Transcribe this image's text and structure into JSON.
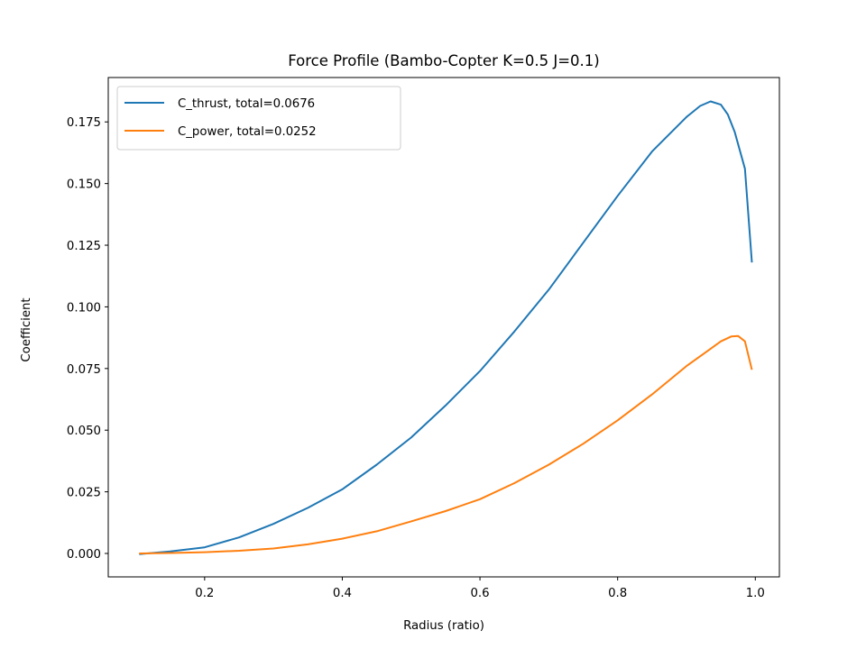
{
  "chart_data": {
    "type": "line",
    "title": "Force Profile (Bambo-Copter K=0.5 J=0.1)",
    "xlabel": "Radius (ratio)",
    "ylabel": "Coefficient",
    "xlim": [
      0.06,
      1.035
    ],
    "ylim": [
      -0.0095,
      0.193
    ],
    "xticks": [
      "0.2",
      "0.4",
      "0.6",
      "0.8",
      "1.0"
    ],
    "xtick_values": [
      0.2,
      0.4,
      0.6,
      0.8,
      1.0
    ],
    "yticks": [
      "0.000",
      "0.025",
      "0.050",
      "0.075",
      "0.100",
      "0.125",
      "0.150",
      "0.175"
    ],
    "ytick_values": [
      0,
      0.025,
      0.05,
      0.075,
      0.1,
      0.125,
      0.15,
      0.175
    ],
    "grid": false,
    "legend_position": "upper left",
    "series": [
      {
        "name": "C_thrust, total=0.0676",
        "color": "#1f77b4",
        "x": [
          0.105,
          0.15,
          0.2,
          0.25,
          0.3,
          0.35,
          0.4,
          0.45,
          0.5,
          0.55,
          0.6,
          0.65,
          0.7,
          0.75,
          0.8,
          0.85,
          0.9,
          0.92,
          0.935,
          0.95,
          0.96,
          0.97,
          0.985,
          0.995
        ],
        "values": [
          -0.0003,
          0.0008,
          0.0025,
          0.0065,
          0.012,
          0.0185,
          0.026,
          0.036,
          0.047,
          0.06,
          0.074,
          0.09,
          0.107,
          0.126,
          0.145,
          0.163,
          0.177,
          0.1815,
          0.1833,
          0.182,
          0.178,
          0.171,
          0.156,
          0.118
        ]
      },
      {
        "name": "C_power, total=0.0252",
        "color": "#ff7f0e",
        "x": [
          0.105,
          0.15,
          0.2,
          0.25,
          0.3,
          0.35,
          0.4,
          0.45,
          0.5,
          0.55,
          0.6,
          0.65,
          0.7,
          0.75,
          0.8,
          0.85,
          0.9,
          0.93,
          0.95,
          0.965,
          0.975,
          0.985,
          0.995
        ],
        "values": [
          0.0,
          0.0002,
          0.0005,
          0.0011,
          0.002,
          0.0037,
          0.006,
          0.009,
          0.013,
          0.0172,
          0.022,
          0.0285,
          0.036,
          0.0445,
          0.054,
          0.0645,
          0.076,
          0.082,
          0.086,
          0.088,
          0.0882,
          0.086,
          0.0745
        ]
      }
    ]
  },
  "legend": {
    "items": [
      {
        "label": "C_thrust, total=0.0676",
        "color": "#1f77b4"
      },
      {
        "label": "C_power, total=0.0252",
        "color": "#ff7f0e"
      }
    ]
  }
}
